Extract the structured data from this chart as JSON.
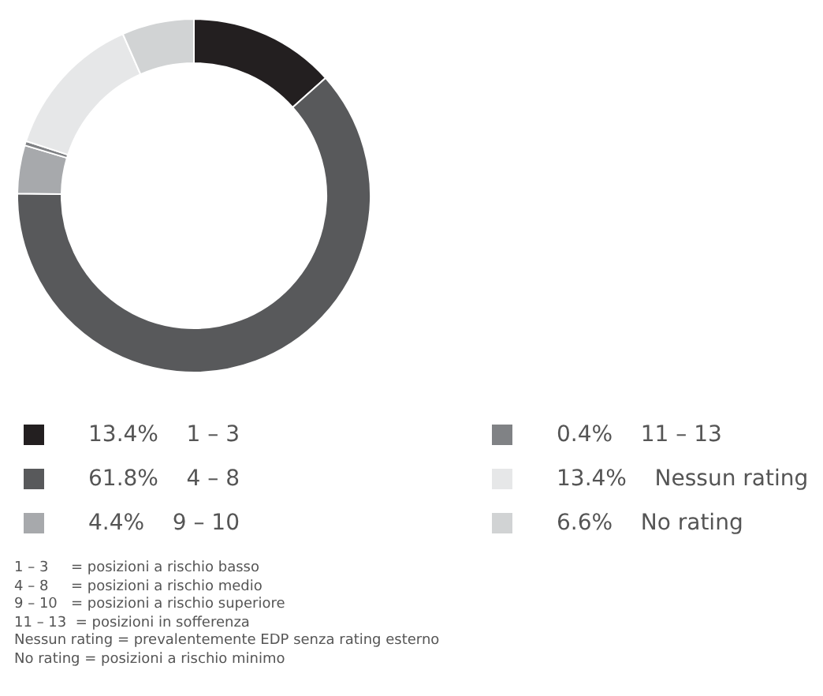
{
  "chart_data": {
    "type": "donut",
    "categories": [
      "1 – 3",
      "4 – 8",
      "9 – 10",
      "11 – 13",
      "Nessun rating",
      "No rating"
    ],
    "values": [
      13.4,
      61.8,
      4.4,
      0.4,
      13.4,
      6.6
    ],
    "value_labels": [
      "13.4%",
      "61.8%",
      "4.4%",
      "0.4%",
      "13.4%",
      "6.6%"
    ],
    "colors": [
      "#231f20",
      "#58595b",
      "#a7a9ac",
      "#808285",
      "#e6e7e8",
      "#d1d3d4"
    ],
    "legend": "bottom",
    "annotations": [
      "1 – 3     = posizioni a rischio basso",
      "4 – 8     = posizioni a rischio medio",
      "9 – 10   = posizioni a rischio superiore",
      "11 – 13  = posizioni in sofferenza",
      "Nessun rating = prevalentemente EDP senza rating esterno",
      "No rating = posizioni a rischio minimo"
    ]
  }
}
